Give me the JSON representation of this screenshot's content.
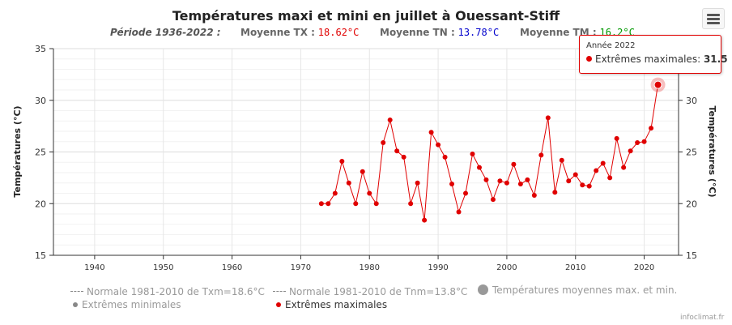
{
  "title": "Températures maxi et mini en juillet à Ouessant-Stiff",
  "subtitle": {
    "period": "Période 1936-2022 :",
    "tx_label": "Moyenne TX :",
    "tx_value": "18.62°C",
    "tn_label": "Moyenne TN :",
    "tn_value": "13.78°C",
    "tm_label": "Moyenne TM :",
    "tm_value": "16.2°C"
  },
  "colors": {
    "max": "#e00000",
    "tx": "#e00000",
    "tn": "#0000cc",
    "tm": "#009900"
  },
  "menu_icon": "hamburger-menu-icon",
  "tooltip": {
    "year": "Année 2022",
    "series": "Extrêmes maximales:",
    "value": "31.5"
  },
  "legend": {
    "normal_tx": "Normale 1981-2010 de Txm=18.6°C",
    "normal_tn": "Normale 1981-2010 de Tnm=13.8°C",
    "mean_maxmin": "Températures moyennes max. et min.",
    "ext_min": "Extrêmes minimales",
    "ext_max": "Extrêmes maximales"
  },
  "credit": "infoclimat.fr",
  "chart_data": {
    "type": "line",
    "title": "Températures maxi et mini en juillet à Ouessant-Stiff",
    "ylabel": "Températures (°C)",
    "ylabel_right": "Températures (°C)",
    "xlim": [
      1934,
      2025
    ],
    "ylim": [
      15,
      35
    ],
    "x_ticks": [
      1940,
      1950,
      1960,
      1970,
      1980,
      1990,
      2000,
      2010,
      2020
    ],
    "y_ticks": [
      15,
      20,
      25,
      30,
      35
    ],
    "grid": true,
    "legend_position": "bottom",
    "series": [
      {
        "name": "Extrêmes maximales",
        "x": [
          1973,
          1974,
          1975,
          1976,
          1977,
          1978,
          1979,
          1980,
          1981,
          1982,
          1983,
          1984,
          1985,
          1986,
          1987,
          1988,
          1989,
          1990,
          1991,
          1992,
          1993,
          1994,
          1995,
          1996,
          1997,
          1998,
          1999,
          2000,
          2001,
          2002,
          2003,
          2004,
          2005,
          2006,
          2007,
          2008,
          2009,
          2010,
          2011,
          2012,
          2013,
          2014,
          2015,
          2016,
          2017,
          2018,
          2019,
          2020,
          2021,
          2022
        ],
        "values": [
          20,
          20,
          21,
          24.1,
          22,
          20,
          23.1,
          21,
          20,
          25.9,
          28.1,
          25.1,
          24.5,
          20,
          22,
          18.4,
          26.9,
          25.7,
          24.5,
          21.9,
          19.2,
          21,
          24.8,
          23.5,
          22.3,
          20.4,
          22.2,
          22,
          23.8,
          21.9,
          22.3,
          20.8,
          24.7,
          28.3,
          21.1,
          24.2,
          22.2,
          22.8,
          21.8,
          21.7,
          23.2,
          23.9,
          22.5,
          26.3,
          23.5,
          25.1,
          25.9,
          26,
          27.3,
          31.5
        ]
      }
    ],
    "highlighted_point": {
      "x": 2022,
      "y": 31.5
    }
  }
}
